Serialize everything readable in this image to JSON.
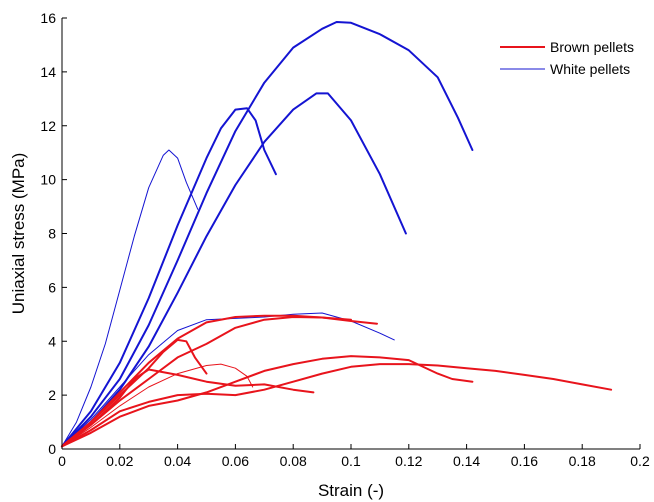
{
  "chart_data": {
    "type": "line",
    "title": "",
    "xlabel": "Strain (-)",
    "ylabel": "Uniaxial stress (MPa)",
    "xlim": [
      0,
      0.2
    ],
    "ylim": [
      0,
      16
    ],
    "xticks": [
      0,
      0.02,
      0.04,
      0.06,
      0.08,
      0.1,
      0.12,
      0.14,
      0.16,
      0.18,
      0.2
    ],
    "xtick_labels": [
      "0",
      "0.02",
      "0.04",
      "0.06",
      "0.08",
      "0.1",
      "0.12",
      "0.14",
      "0.16",
      "0.18",
      "0.2"
    ],
    "yticks": [
      0,
      2,
      4,
      6,
      8,
      10,
      12,
      14,
      16
    ],
    "ytick_labels": [
      "0",
      "2",
      "4",
      "6",
      "8",
      "10",
      "12",
      "14",
      "16"
    ],
    "grid": false,
    "legend_position": "top-right",
    "legend": [
      {
        "name": "Brown pellets",
        "color": "#e8141c"
      },
      {
        "name": "White pellets",
        "color": "#1414d2"
      }
    ],
    "series": [
      {
        "group": "White pellets",
        "color": "#1414d2",
        "weight": "thick",
        "points": [
          [
            0,
            0.1
          ],
          [
            0.01,
            1.2
          ],
          [
            0.02,
            2.6
          ],
          [
            0.03,
            4.6
          ],
          [
            0.04,
            7.0
          ],
          [
            0.05,
            9.5
          ],
          [
            0.06,
            11.8
          ],
          [
            0.07,
            13.6
          ],
          [
            0.08,
            14.9
          ],
          [
            0.09,
            15.6
          ],
          [
            0.095,
            15.85
          ],
          [
            0.1,
            15.82
          ],
          [
            0.11,
            15.4
          ],
          [
            0.12,
            14.8
          ],
          [
            0.13,
            13.8
          ],
          [
            0.137,
            12.3
          ],
          [
            0.142,
            11.1
          ]
        ]
      },
      {
        "group": "White pellets",
        "color": "#1414d2",
        "weight": "thick",
        "points": [
          [
            0,
            0.1
          ],
          [
            0.01,
            1.0
          ],
          [
            0.02,
            2.2
          ],
          [
            0.03,
            3.8
          ],
          [
            0.04,
            5.8
          ],
          [
            0.05,
            7.9
          ],
          [
            0.06,
            9.8
          ],
          [
            0.07,
            11.4
          ],
          [
            0.08,
            12.6
          ],
          [
            0.088,
            13.2
          ],
          [
            0.092,
            13.2
          ],
          [
            0.1,
            12.2
          ],
          [
            0.11,
            10.2
          ],
          [
            0.119,
            8.0
          ]
        ]
      },
      {
        "group": "White pellets",
        "color": "#1414d2",
        "weight": "thick",
        "points": [
          [
            0,
            0.1
          ],
          [
            0.01,
            1.4
          ],
          [
            0.02,
            3.2
          ],
          [
            0.03,
            5.6
          ],
          [
            0.04,
            8.3
          ],
          [
            0.05,
            10.8
          ],
          [
            0.055,
            11.9
          ],
          [
            0.06,
            12.6
          ],
          [
            0.064,
            12.65
          ],
          [
            0.067,
            12.2
          ],
          [
            0.07,
            11.1
          ],
          [
            0.074,
            10.2
          ]
        ]
      },
      {
        "group": "White pellets",
        "color": "#1414d2",
        "weight": "thin",
        "points": [
          [
            0,
            0.1
          ],
          [
            0.005,
            1.0
          ],
          [
            0.01,
            2.3
          ],
          [
            0.015,
            3.9
          ],
          [
            0.02,
            5.9
          ],
          [
            0.025,
            7.9
          ],
          [
            0.03,
            9.7
          ],
          [
            0.035,
            10.9
          ],
          [
            0.037,
            11.1
          ],
          [
            0.04,
            10.8
          ],
          [
            0.043,
            9.9
          ],
          [
            0.047,
            8.9
          ]
        ]
      },
      {
        "group": "White pellets",
        "color": "#1414d2",
        "weight": "thin",
        "points": [
          [
            0,
            0.1
          ],
          [
            0.01,
            1.1
          ],
          [
            0.02,
            2.3
          ],
          [
            0.03,
            3.5
          ],
          [
            0.04,
            4.4
          ],
          [
            0.05,
            4.8
          ],
          [
            0.06,
            4.85
          ],
          [
            0.07,
            4.9
          ],
          [
            0.08,
            5.0
          ],
          [
            0.09,
            5.05
          ],
          [
            0.1,
            4.75
          ],
          [
            0.11,
            4.3
          ],
          [
            0.115,
            4.05
          ]
        ]
      },
      {
        "group": "Brown pellets",
        "color": "#e8141c",
        "weight": "thick",
        "points": [
          [
            0,
            0.1
          ],
          [
            0.01,
            1.0
          ],
          [
            0.02,
            2.1
          ],
          [
            0.03,
            3.2
          ],
          [
            0.04,
            4.1
          ],
          [
            0.05,
            4.7
          ],
          [
            0.06,
            4.9
          ],
          [
            0.07,
            4.95
          ],
          [
            0.08,
            4.95
          ],
          [
            0.09,
            4.88
          ],
          [
            0.1,
            4.75
          ],
          [
            0.109,
            4.65
          ]
        ]
      },
      {
        "group": "Brown pellets",
        "color": "#e8141c",
        "weight": "thick",
        "points": [
          [
            0,
            0.1
          ],
          [
            0.01,
            0.9
          ],
          [
            0.02,
            1.8
          ],
          [
            0.03,
            2.6
          ],
          [
            0.04,
            3.4
          ],
          [
            0.05,
            3.9
          ],
          [
            0.06,
            4.5
          ],
          [
            0.07,
            4.8
          ],
          [
            0.08,
            4.9
          ],
          [
            0.09,
            4.88
          ],
          [
            0.1,
            4.8
          ]
        ]
      },
      {
        "group": "Brown pellets",
        "color": "#e8141c",
        "weight": "thick",
        "points": [
          [
            0,
            0.1
          ],
          [
            0.01,
            1.0
          ],
          [
            0.02,
            2.0
          ],
          [
            0.03,
            3.0
          ],
          [
            0.035,
            3.6
          ],
          [
            0.04,
            4.05
          ],
          [
            0.043,
            4.0
          ],
          [
            0.046,
            3.4
          ],
          [
            0.05,
            2.8
          ]
        ]
      },
      {
        "group": "Brown pellets",
        "color": "#e8141c",
        "weight": "thick",
        "points": [
          [
            0,
            0.1
          ],
          [
            0.01,
            0.9
          ],
          [
            0.02,
            1.9
          ],
          [
            0.025,
            2.6
          ],
          [
            0.03,
            2.95
          ],
          [
            0.04,
            2.75
          ],
          [
            0.05,
            2.5
          ],
          [
            0.06,
            2.35
          ],
          [
            0.07,
            2.4
          ],
          [
            0.08,
            2.2
          ],
          [
            0.087,
            2.1
          ]
        ]
      },
      {
        "group": "Brown pellets",
        "color": "#e8141c",
        "weight": "thin",
        "points": [
          [
            0,
            0.1
          ],
          [
            0.01,
            0.8
          ],
          [
            0.02,
            1.6
          ],
          [
            0.03,
            2.3
          ],
          [
            0.04,
            2.8
          ],
          [
            0.05,
            3.1
          ],
          [
            0.055,
            3.15
          ],
          [
            0.06,
            3.0
          ],
          [
            0.064,
            2.7
          ],
          [
            0.066,
            2.3
          ]
        ]
      },
      {
        "group": "Brown pellets",
        "color": "#e8141c",
        "weight": "thick",
        "points": [
          [
            0,
            0.1
          ],
          [
            0.01,
            0.6
          ],
          [
            0.02,
            1.2
          ],
          [
            0.03,
            1.6
          ],
          [
            0.04,
            1.8
          ],
          [
            0.05,
            2.1
          ],
          [
            0.06,
            2.5
          ],
          [
            0.07,
            2.9
          ],
          [
            0.08,
            3.15
          ],
          [
            0.09,
            3.35
          ],
          [
            0.1,
            3.45
          ],
          [
            0.11,
            3.4
          ],
          [
            0.12,
            3.3
          ],
          [
            0.13,
            2.8
          ],
          [
            0.135,
            2.6
          ],
          [
            0.142,
            2.5
          ]
        ]
      },
      {
        "group": "Brown pellets",
        "color": "#e8141c",
        "weight": "thick",
        "points": [
          [
            0,
            0.1
          ],
          [
            0.01,
            0.7
          ],
          [
            0.02,
            1.4
          ],
          [
            0.03,
            1.75
          ],
          [
            0.04,
            2.0
          ],
          [
            0.05,
            2.05
          ],
          [
            0.06,
            2.0
          ],
          [
            0.07,
            2.2
          ],
          [
            0.08,
            2.5
          ],
          [
            0.09,
            2.8
          ],
          [
            0.1,
            3.05
          ],
          [
            0.11,
            3.15
          ],
          [
            0.12,
            3.15
          ],
          [
            0.13,
            3.1
          ],
          [
            0.14,
            3.0
          ],
          [
            0.15,
            2.9
          ],
          [
            0.16,
            2.75
          ],
          [
            0.17,
            2.6
          ],
          [
            0.18,
            2.4
          ],
          [
            0.19,
            2.2
          ]
        ]
      }
    ]
  }
}
